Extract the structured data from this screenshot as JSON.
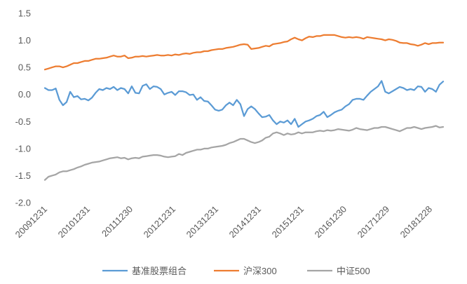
{
  "chart_data": {
    "type": "line",
    "title": "",
    "xlabel": "",
    "ylabel": "",
    "ylim": [
      -2.0,
      1.5
    ],
    "ytick_step": 0.5,
    "ytick_labels": [
      "1.5",
      "1.0",
      "0.5",
      "0.0",
      "-0.5",
      "-1.0",
      "-1.5",
      "-2.0"
    ],
    "x_tick_labels": [
      "20091231",
      "20101231",
      "20111230",
      "20121231",
      "20131231",
      "20141231",
      "20151231",
      "20161230",
      "20171229",
      "20181228"
    ],
    "legend_position": "bottom",
    "grid": "none",
    "series": [
      {
        "name": "基准股票组合",
        "color": "#5B9BD5",
        "values": [
          0.12,
          0.08,
          0.08,
          0.11,
          -0.1,
          -0.2,
          -0.14,
          0.05,
          -0.05,
          -0.03,
          -0.09,
          -0.08,
          -0.11,
          -0.06,
          0.03,
          0.1,
          0.08,
          0.12,
          0.1,
          0.14,
          0.08,
          0.12,
          0.1,
          0.02,
          0.15,
          0.03,
          0.02,
          0.16,
          0.19,
          0.1,
          0.15,
          0.14,
          0.1,
          0.0,
          0.03,
          0.05,
          -0.01,
          0.06,
          0.06,
          0.04,
          -0.01,
          0.0,
          -0.1,
          -0.05,
          -0.12,
          -0.13,
          -0.2,
          -0.28,
          -0.3,
          -0.28,
          -0.2,
          -0.15,
          -0.2,
          -0.1,
          -0.18,
          -0.4,
          -0.27,
          -0.22,
          -0.27,
          -0.35,
          -0.42,
          -0.41,
          -0.38,
          -0.48,
          -0.55,
          -0.5,
          -0.52,
          -0.48,
          -0.55,
          -0.45,
          -0.6,
          -0.55,
          -0.5,
          -0.48,
          -0.45,
          -0.4,
          -0.38,
          -0.32,
          -0.42,
          -0.38,
          -0.33,
          -0.3,
          -0.28,
          -0.22,
          -0.18,
          -0.1,
          -0.08,
          -0.08,
          -0.1,
          -0.02,
          0.05,
          0.1,
          0.15,
          0.25,
          0.05,
          0.02,
          0.06,
          0.1,
          0.14,
          0.12,
          0.08,
          0.1,
          0.08,
          0.15,
          0.14,
          0.05,
          0.12,
          0.1,
          0.05,
          0.18,
          0.24
        ]
      },
      {
        "name": "沪深300",
        "color": "#ED7D31",
        "values": [
          0.46,
          0.48,
          0.5,
          0.52,
          0.52,
          0.5,
          0.52,
          0.55,
          0.58,
          0.58,
          0.6,
          0.62,
          0.62,
          0.64,
          0.66,
          0.66,
          0.67,
          0.68,
          0.7,
          0.72,
          0.7,
          0.7,
          0.72,
          0.67,
          0.68,
          0.7,
          0.7,
          0.71,
          0.7,
          0.71,
          0.72,
          0.73,
          0.72,
          0.72,
          0.73,
          0.72,
          0.74,
          0.73,
          0.75,
          0.76,
          0.75,
          0.77,
          0.78,
          0.78,
          0.8,
          0.8,
          0.82,
          0.83,
          0.84,
          0.84,
          0.86,
          0.87,
          0.88,
          0.9,
          0.92,
          0.93,
          0.92,
          0.84,
          0.85,
          0.86,
          0.88,
          0.9,
          0.89,
          0.93,
          0.94,
          0.95,
          0.97,
          0.98,
          1.02,
          1.05,
          1.02,
          1.0,
          1.04,
          1.07,
          1.06,
          1.08,
          1.08,
          1.1,
          1.1,
          1.1,
          1.1,
          1.08,
          1.06,
          1.05,
          1.06,
          1.05,
          1.06,
          1.05,
          1.03,
          1.06,
          1.05,
          1.04,
          1.03,
          1.02,
          1.0,
          1.02,
          1.01,
          0.99,
          0.96,
          0.95,
          0.95,
          0.93,
          0.92,
          0.9,
          0.92,
          0.95,
          0.93,
          0.95,
          0.95,
          0.96,
          0.96
        ]
      },
      {
        "name": "中证500",
        "color": "#A5A5A5",
        "values": [
          -1.58,
          -1.52,
          -1.5,
          -1.48,
          -1.44,
          -1.42,
          -1.42,
          -1.4,
          -1.38,
          -1.35,
          -1.33,
          -1.3,
          -1.28,
          -1.26,
          -1.25,
          -1.24,
          -1.22,
          -1.2,
          -1.18,
          -1.17,
          -1.16,
          -1.18,
          -1.17,
          -1.2,
          -1.18,
          -1.17,
          -1.18,
          -1.15,
          -1.14,
          -1.13,
          -1.12,
          -1.12,
          -1.13,
          -1.15,
          -1.16,
          -1.15,
          -1.14,
          -1.1,
          -1.12,
          -1.08,
          -1.06,
          -1.04,
          -1.02,
          -1.02,
          -1.0,
          -1.0,
          -0.98,
          -0.97,
          -0.96,
          -0.95,
          -0.93,
          -0.9,
          -0.88,
          -0.85,
          -0.82,
          -0.82,
          -0.85,
          -0.88,
          -0.9,
          -0.88,
          -0.85,
          -0.8,
          -0.78,
          -0.72,
          -0.7,
          -0.72,
          -0.75,
          -0.72,
          -0.74,
          -0.73,
          -0.7,
          -0.72,
          -0.7,
          -0.7,
          -0.7,
          -0.68,
          -0.67,
          -0.68,
          -0.66,
          -0.67,
          -0.66,
          -0.64,
          -0.65,
          -0.66,
          -0.67,
          -0.65,
          -0.62,
          -0.64,
          -0.65,
          -0.66,
          -0.64,
          -0.62,
          -0.62,
          -0.6,
          -0.6,
          -0.62,
          -0.64,
          -0.66,
          -0.68,
          -0.65,
          -0.62,
          -0.62,
          -0.6,
          -0.62,
          -0.64,
          -0.62,
          -0.61,
          -0.6,
          -0.58,
          -0.61,
          -0.6
        ]
      }
    ]
  }
}
